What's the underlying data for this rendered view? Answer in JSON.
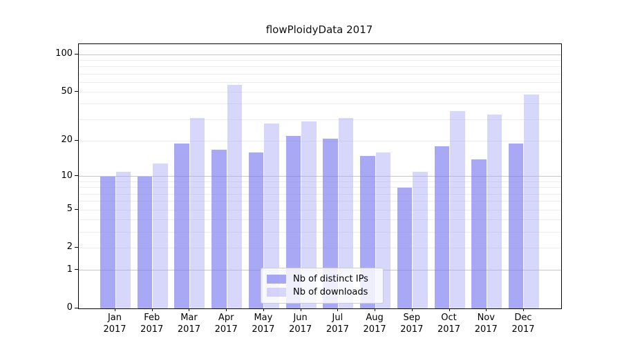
{
  "title": "flowPloidyData 2017",
  "chart_data": {
    "type": "bar",
    "title": "flowPloidyData 2017",
    "categories": [
      "Jan 2017",
      "Feb 2017",
      "Mar 2017",
      "Apr 2017",
      "May 2017",
      "Jun 2017",
      "Jul 2017",
      "Aug 2017",
      "Sep 2017",
      "Oct 2017",
      "Nov 2017",
      "Dec 2017"
    ],
    "series": [
      {
        "name": "Nb of distinct IPs",
        "color": "#7575EEA1",
        "values": [
          10,
          10,
          19,
          17,
          16,
          22,
          21,
          15,
          8,
          18,
          14,
          19
        ]
      },
      {
        "name": "Nb of downloads",
        "color": "#A0A0F56B",
        "values": [
          11,
          13,
          31,
          57,
          28,
          29,
          31,
          16,
          11,
          35,
          33,
          48
        ]
      }
    ],
    "xlabel": "",
    "ylabel": "",
    "y_scale": "log1p",
    "ylim": [
      0,
      121
    ],
    "y_ticks": [
      100,
      50,
      20,
      10,
      5,
      2,
      1,
      0
    ],
    "y_major_gridlines": [
      1,
      10,
      100
    ],
    "y_minor_gridlines": [
      2,
      3,
      4,
      5,
      6,
      7,
      8,
      9,
      20,
      30,
      40,
      50,
      60,
      70,
      80,
      90
    ],
    "grid": true,
    "legend_position": "lower center"
  },
  "legend": {
    "entries": [
      "Nb of distinct IPs",
      "Nb of downloads"
    ]
  },
  "colors": {
    "minor_grid": "#ececec",
    "major_grid": "#c8c8c8",
    "axis": "#000000",
    "series_dark": "#7575EEA1",
    "series_light": "#A0A0F56B"
  }
}
